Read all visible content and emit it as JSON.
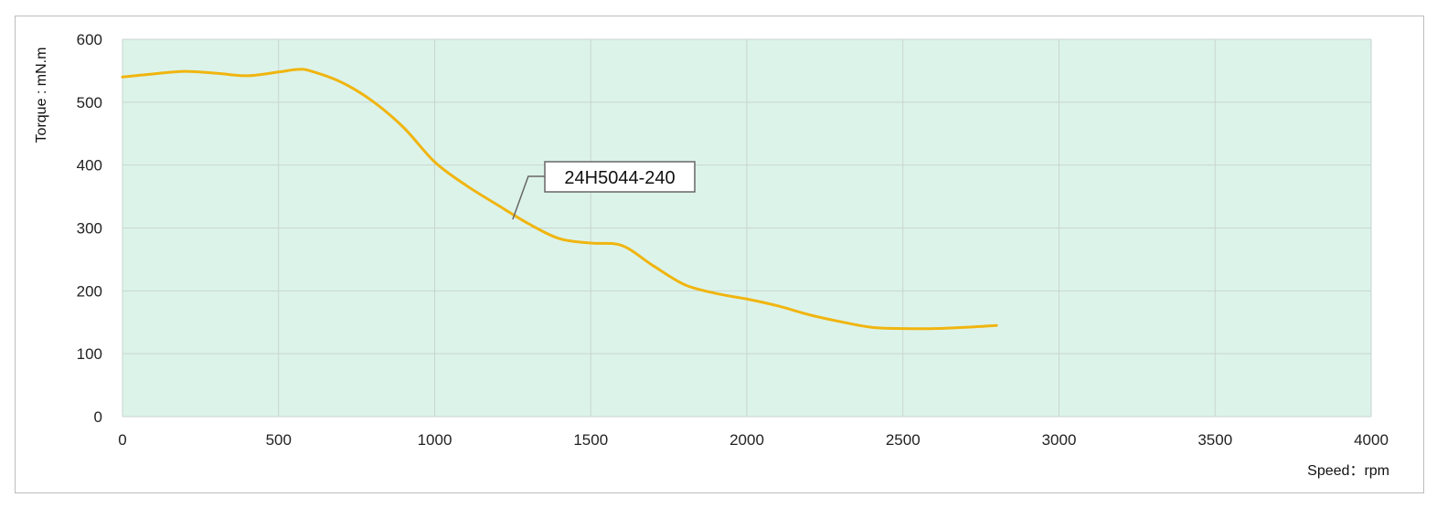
{
  "chart_data": {
    "type": "line",
    "title": "",
    "xlabel": "Speed：rpm",
    "ylabel": "Torque : mN.m",
    "xlim": [
      0,
      4000
    ],
    "ylim": [
      0,
      600
    ],
    "x_ticks": [
      0,
      500,
      1000,
      1500,
      2000,
      2500,
      3000,
      3500,
      4000
    ],
    "y_ticks": [
      0,
      100,
      200,
      300,
      400,
      500,
      600
    ],
    "grid": true,
    "legend": "none",
    "plot_background": "#dcf3ea",
    "series": [
      {
        "name": "24H5044-240",
        "color": "#f0b50f",
        "points": [
          [
            0,
            540
          ],
          [
            100,
            545
          ],
          [
            200,
            549
          ],
          [
            300,
            546
          ],
          [
            400,
            542
          ],
          [
            500,
            548
          ],
          [
            560,
            552
          ],
          [
            600,
            550
          ],
          [
            700,
            532
          ],
          [
            800,
            502
          ],
          [
            900,
            460
          ],
          [
            1000,
            405
          ],
          [
            1100,
            368
          ],
          [
            1200,
            337
          ],
          [
            1300,
            307
          ],
          [
            1400,
            283
          ],
          [
            1500,
            276
          ],
          [
            1600,
            272
          ],
          [
            1700,
            240
          ],
          [
            1800,
            210
          ],
          [
            1900,
            196
          ],
          [
            2000,
            187
          ],
          [
            2100,
            176
          ],
          [
            2200,
            162
          ],
          [
            2300,
            151
          ],
          [
            2400,
            142
          ],
          [
            2500,
            140
          ],
          [
            2600,
            140
          ],
          [
            2700,
            142
          ],
          [
            2800,
            145
          ]
        ],
        "annotation": {
          "label": "24H5044-240",
          "at": [
            1250,
            318
          ]
        }
      }
    ]
  }
}
